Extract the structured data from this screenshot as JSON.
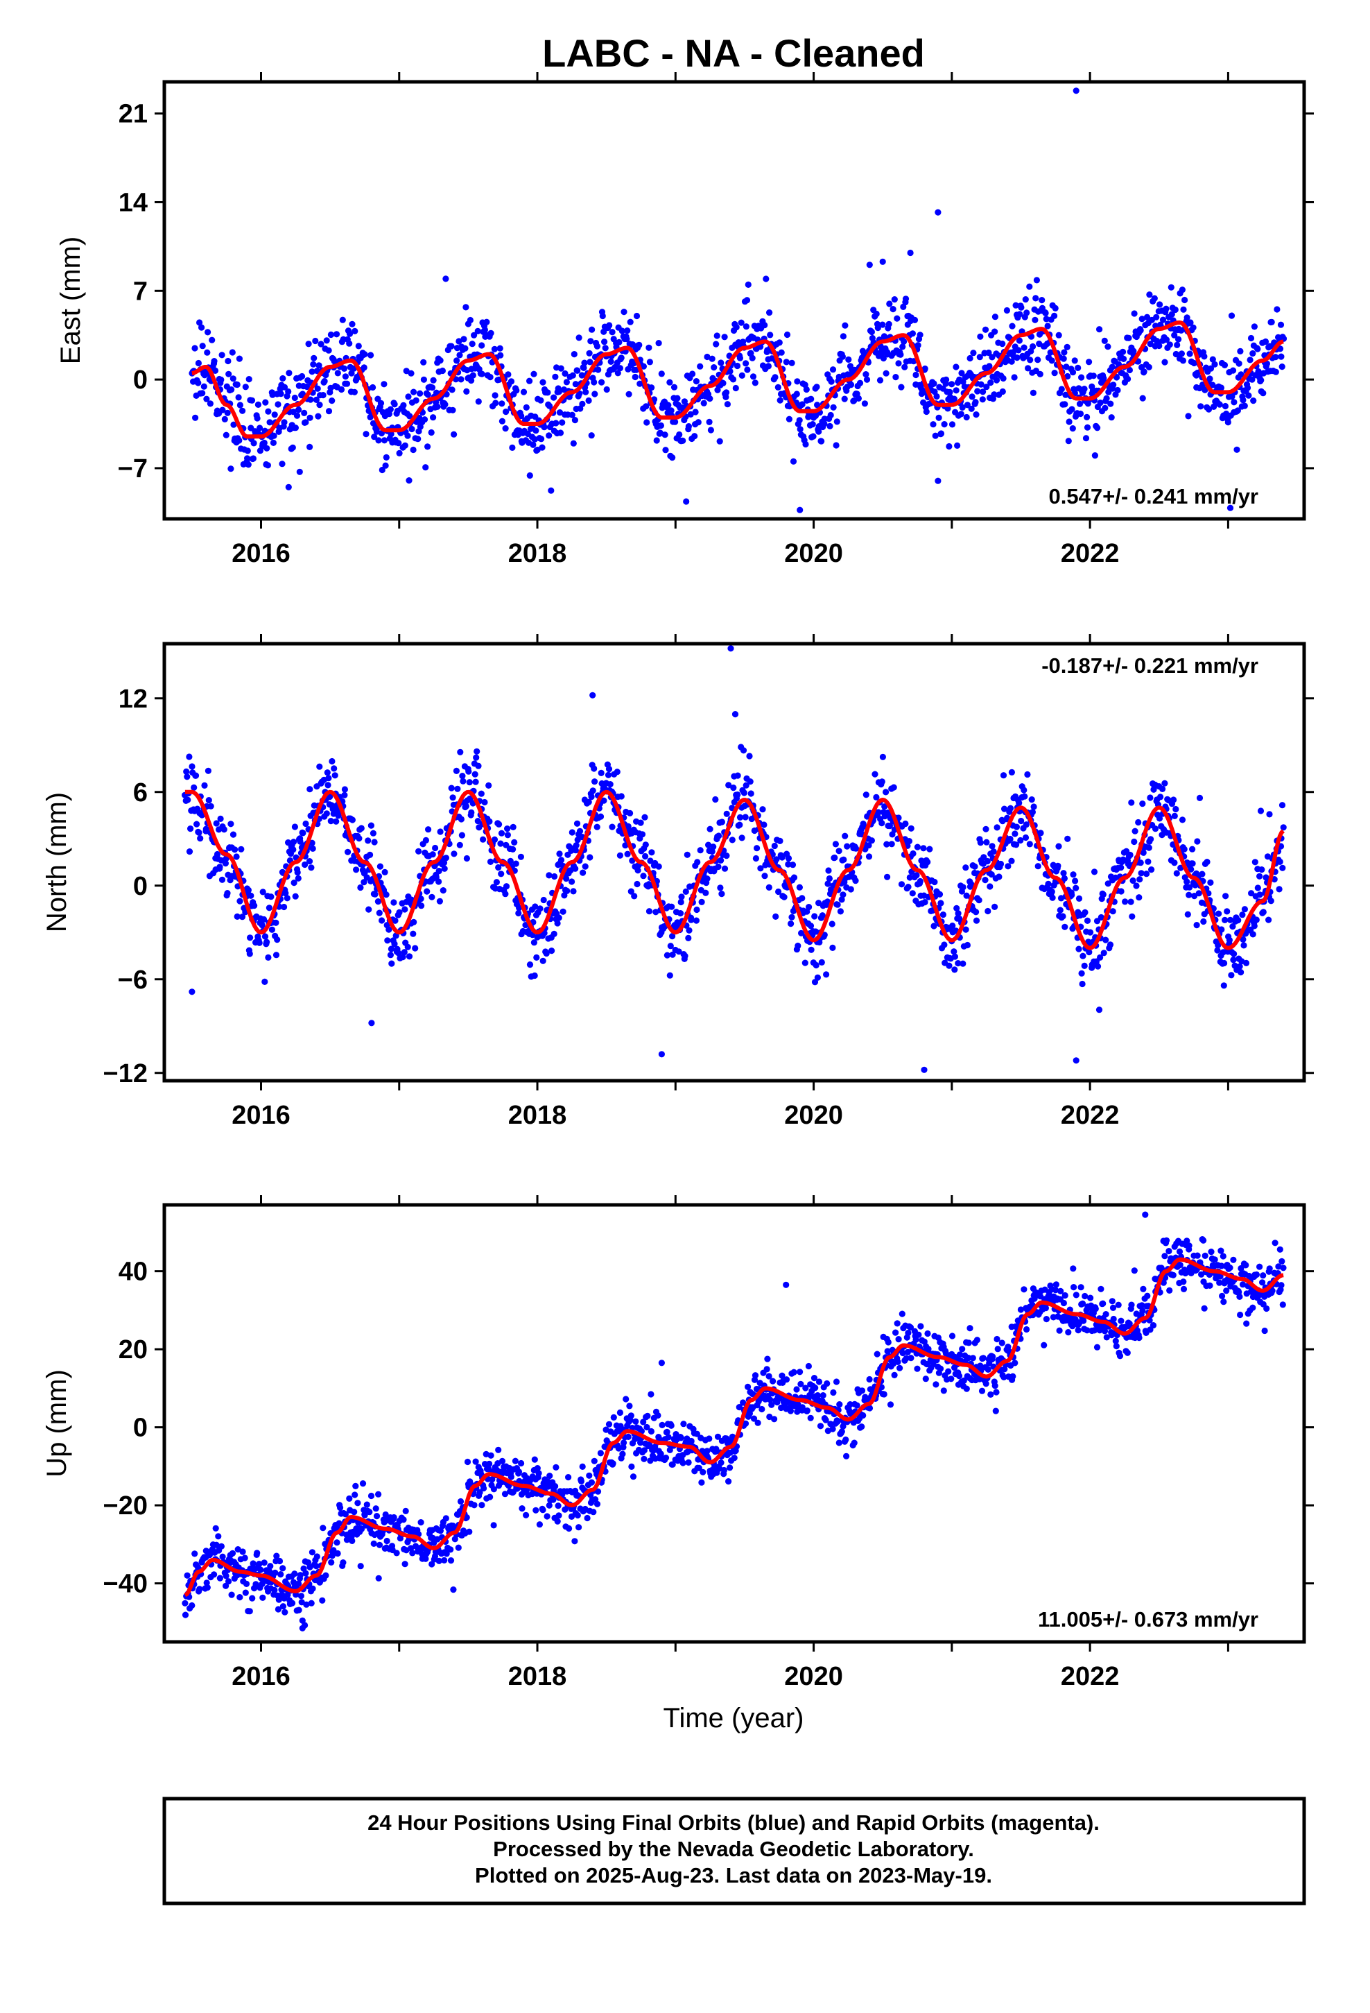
{
  "title": "LABC  - NA - Cleaned",
  "xlabel": "Time (year)",
  "footer": [
    "24 Hour Positions Using Final Orbits (blue) and Rapid Orbits (magenta).",
    "Processed by the Nevada Geodetic Laboratory.",
    "Plotted on 2025-Aug-23. Last data on 2023-May-19."
  ],
  "colors": {
    "points": "#0000ff",
    "model": "#ff0000",
    "frame": "#000000"
  },
  "chart_data": [
    {
      "type": "scatter",
      "name": "east",
      "ylabel": "East (mm)",
      "rate_label": "0.547+/- 0.241 mm/yr",
      "rate_position": "bottom-right",
      "xlim": [
        2015.3,
        2023.55
      ],
      "ylim": [
        -11,
        23.5
      ],
      "xticks": [
        2016,
        2018,
        2020,
        2022
      ],
      "yticks": [
        -7,
        0,
        7,
        14,
        21
      ],
      "xtick_labels": [
        "2016",
        "2018",
        "2020",
        "2022"
      ],
      "ytick_labels": [
        "−7",
        "0",
        "7",
        "14",
        "21"
      ],
      "grid": false,
      "model": {
        "x": [
          2015.5,
          2015.6,
          2015.75,
          2015.9,
          2016.0,
          2016.25,
          2016.5,
          2016.65,
          2016.9,
          2017.0,
          2017.25,
          2017.5,
          2017.65,
          2017.9,
          2018.0,
          2018.25,
          2018.5,
          2018.65,
          2018.9,
          2019.0,
          2019.25,
          2019.5,
          2019.65,
          2019.9,
          2020.0,
          2020.25,
          2020.5,
          2020.65,
          2020.9,
          2021.0,
          2021.25,
          2021.5,
          2021.65,
          2021.9,
          2022.0,
          2022.25,
          2022.5,
          2022.65,
          2022.9,
          2023.0,
          2023.25,
          2023.4
        ],
        "y": [
          0.5,
          1.0,
          -2.0,
          -4.5,
          -4.5,
          -2.0,
          1.0,
          1.5,
          -4.0,
          -4.0,
          -1.5,
          1.5,
          2.0,
          -3.5,
          -3.5,
          -1.0,
          2.0,
          2.5,
          -3.0,
          -3.0,
          -0.5,
          2.5,
          3.0,
          -2.5,
          -2.5,
          0.0,
          3.0,
          3.5,
          -2.0,
          -2.0,
          0.5,
          3.5,
          4.0,
          -1.5,
          -1.5,
          1.0,
          4.0,
          4.5,
          -1.0,
          -1.0,
          1.5,
          3.0
        ]
      },
      "outliers": {
        "x": [
          2021.9,
          2020.9,
          2020.5,
          2020.7,
          2019.9,
          2016.2,
          2020.9
        ],
        "y": [
          22.8,
          13.2,
          9.3,
          10.0,
          -10.3,
          -8.5,
          -8.0
        ]
      },
      "scatter_model": {
        "noise_sd": 1.6,
        "outlier_fraction": 0.05
      }
    },
    {
      "type": "scatter",
      "name": "north",
      "ylabel": "North (mm)",
      "rate_label": "-0.187+/- 0.221 mm/yr",
      "rate_position": "top-right",
      "xlim": [
        2015.3,
        2023.55
      ],
      "ylim": [
        -12.5,
        15.5
      ],
      "xticks": [
        2016,
        2018,
        2020,
        2022
      ],
      "yticks": [
        -12,
        -6,
        0,
        6,
        12
      ],
      "xtick_labels": [
        "2016",
        "2018",
        "2020",
        "2022"
      ],
      "ytick_labels": [
        "−12",
        "−6",
        "0",
        "6",
        "12"
      ],
      "grid": false,
      "model": {
        "x": [
          2015.45,
          2015.5,
          2015.75,
          2016.0,
          2016.25,
          2016.5,
          2016.75,
          2017.0,
          2017.25,
          2017.5,
          2017.75,
          2018.0,
          2018.25,
          2018.5,
          2018.75,
          2019.0,
          2019.25,
          2019.5,
          2019.75,
          2020.0,
          2020.25,
          2020.5,
          2020.75,
          2021.0,
          2021.25,
          2021.5,
          2021.75,
          2022.0,
          2022.25,
          2022.5,
          2022.75,
          2023.0,
          2023.25,
          2023.4
        ],
        "y": [
          6.0,
          6.0,
          2.0,
          -3.0,
          1.5,
          6.0,
          1.5,
          -3.0,
          1.5,
          6.0,
          1.5,
          -3.0,
          1.5,
          6.0,
          1.5,
          -3.0,
          1.5,
          5.5,
          1.0,
          -3.5,
          1.0,
          5.5,
          1.0,
          -3.5,
          1.0,
          5.0,
          0.5,
          -4.0,
          0.5,
          5.0,
          0.5,
          -4.0,
          -1.0,
          3.5
        ]
      },
      "outliers": {
        "x": [
          2019.4,
          2018.4,
          2016.8,
          2020.8,
          2021.9,
          2018.9,
          2015.5
        ],
        "y": [
          15.2,
          12.2,
          -8.8,
          -11.8,
          -11.2,
          -10.8,
          -6.8
        ]
      },
      "scatter_model": {
        "noise_sd": 1.3,
        "outlier_fraction": 0.04
      }
    },
    {
      "type": "scatter",
      "name": "up",
      "ylabel": "Up (mm)",
      "rate_label": "11.005+/- 0.673 mm/yr",
      "rate_position": "bottom-right",
      "xlim": [
        2015.3,
        2023.55
      ],
      "ylim": [
        -55,
        57
      ],
      "xticks": [
        2016,
        2018,
        2020,
        2022
      ],
      "yticks": [
        -40,
        -20,
        0,
        20,
        40
      ],
      "xtick_labels": [
        "2016",
        "2018",
        "2020",
        "2022"
      ],
      "ytick_labels": [
        "−40",
        "−20",
        "0",
        "20",
        "40"
      ],
      "grid": false,
      "model": {
        "x": [
          2015.45,
          2015.55,
          2015.65,
          2015.85,
          2016.0,
          2016.25,
          2016.4,
          2016.55,
          2016.65,
          2016.9,
          2017.1,
          2017.25,
          2017.4,
          2017.55,
          2017.65,
          2017.9,
          2018.1,
          2018.25,
          2018.4,
          2018.55,
          2018.65,
          2018.9,
          2019.1,
          2019.25,
          2019.4,
          2019.55,
          2019.65,
          2019.9,
          2020.1,
          2020.25,
          2020.4,
          2020.55,
          2020.65,
          2020.9,
          2021.1,
          2021.25,
          2021.4,
          2021.55,
          2021.65,
          2021.9,
          2022.1,
          2022.25,
          2022.4,
          2022.55,
          2022.65,
          2022.9,
          2023.1,
          2023.25,
          2023.4
        ],
        "y": [
          -43,
          -37,
          -34,
          -37,
          -38,
          -42,
          -38,
          -27,
          -23,
          -26,
          -28,
          -31,
          -27,
          -15,
          -12,
          -15,
          -17,
          -20,
          -16,
          -4,
          -1,
          -4,
          -5,
          -9,
          -5,
          7,
          10,
          7,
          5,
          2,
          6,
          18,
          21,
          18,
          16,
          13,
          17,
          29,
          32,
          29,
          27,
          24,
          28,
          40,
          43,
          40,
          38,
          35,
          39
        ]
      },
      "outliers": {
        "x": [
          2022.4,
          2019.8,
          2016.3,
          2018.9
        ],
        "y": [
          54.5,
          36.5,
          -51.5,
          16.5
        ]
      },
      "scatter_model": {
        "noise_sd": 3.4,
        "outlier_fraction": 0.03
      }
    }
  ]
}
